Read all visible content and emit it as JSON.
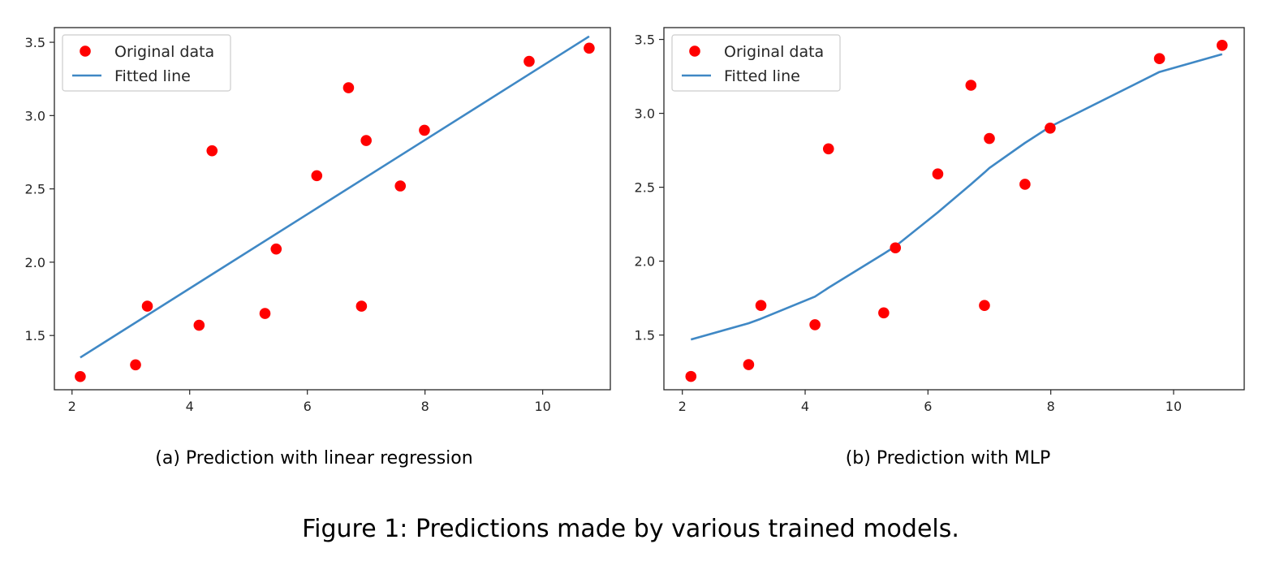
{
  "figure": {
    "caption": "Figure 1: Predictions made by various trained models."
  },
  "colors": {
    "points": "#ff0000",
    "line": "#3f88c5",
    "axes": "#262626",
    "legend_border": "#cccccc"
  },
  "chart_data": [
    {
      "type": "scatter",
      "subcaption": "(a) Prediction with linear regression",
      "title": "",
      "xlabel": "",
      "ylabel": "",
      "xlim": [
        1.7,
        11.15
      ],
      "ylim": [
        1.13,
        3.6
      ],
      "xticks": [
        2,
        4,
        6,
        8,
        10
      ],
      "yticks": [
        1.5,
        2.0,
        2.5,
        3.0,
        3.5
      ],
      "grid": false,
      "legend": {
        "position": "top-left",
        "entries": [
          "Original data",
          "Fitted line"
        ]
      },
      "series": [
        {
          "name": "Original data",
          "kind": "scatter",
          "color": "#ff0000",
          "x": [
            2.14,
            3.08,
            3.28,
            4.16,
            4.38,
            5.28,
            5.47,
            6.16,
            6.7,
            6.92,
            7.0,
            7.58,
            7.99,
            9.77,
            10.79
          ],
          "y": [
            1.22,
            1.3,
            1.7,
            1.57,
            2.76,
            1.65,
            2.09,
            2.59,
            3.19,
            1.7,
            2.83,
            2.52,
            2.9,
            3.37,
            3.46
          ]
        },
        {
          "name": "Fitted line",
          "kind": "line",
          "color": "#3f88c5",
          "x": [
            2.14,
            10.79
          ],
          "y": [
            1.35,
            3.54
          ]
        }
      ]
    },
    {
      "type": "scatter",
      "subcaption": "(b) Prediction with MLP",
      "title": "",
      "xlabel": "",
      "ylabel": "",
      "xlim": [
        1.7,
        11.15
      ],
      "ylim": [
        1.13,
        3.58
      ],
      "xticks": [
        2,
        4,
        6,
        8,
        10
      ],
      "yticks": [
        1.5,
        2.0,
        2.5,
        3.0,
        3.5
      ],
      "grid": false,
      "legend": {
        "position": "top-left",
        "entries": [
          "Original data",
          "Fitted line"
        ]
      },
      "series": [
        {
          "name": "Original data",
          "kind": "scatter",
          "color": "#ff0000",
          "x": [
            2.14,
            3.08,
            3.28,
            4.16,
            4.38,
            5.28,
            5.47,
            6.16,
            6.7,
            6.92,
            7.0,
            7.58,
            7.99,
            9.77,
            10.79
          ],
          "y": [
            1.22,
            1.3,
            1.7,
            1.57,
            2.76,
            1.65,
            2.09,
            2.59,
            3.19,
            1.7,
            2.83,
            2.52,
            2.9,
            3.37,
            3.46
          ]
        },
        {
          "name": "Fitted line",
          "kind": "line",
          "color": "#3f88c5",
          "x": [
            2.14,
            3.08,
            3.28,
            4.16,
            4.38,
            5.28,
            5.47,
            6.16,
            6.7,
            6.92,
            7.0,
            7.58,
            7.99,
            9.77,
            10.79
          ],
          "y": [
            1.47,
            1.58,
            1.61,
            1.76,
            1.82,
            2.05,
            2.1,
            2.33,
            2.52,
            2.6,
            2.63,
            2.8,
            2.91,
            3.28,
            3.4
          ]
        }
      ]
    }
  ]
}
